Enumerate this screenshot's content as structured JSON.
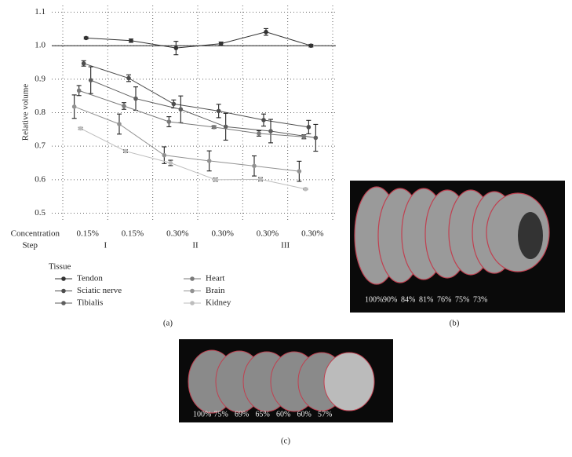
{
  "chart_data": {
    "type": "line",
    "y_label": "Relative volume",
    "x_row_labels": [
      "Concentration",
      "Step"
    ],
    "categories": [
      "0.15%",
      "0.15%",
      "0.30%",
      "0.30%",
      "0.30%",
      "0.30%"
    ],
    "steps": [
      "I",
      "II",
      "III"
    ],
    "ylim": [
      0.48,
      1.12
    ],
    "yticks": [
      0.5,
      0.6,
      0.7,
      0.8,
      0.9,
      {
        "value": 1.0,
        "label": "1.0"
      },
      1.1
    ],
    "reference_line": 1.0,
    "grid": true,
    "legend_title": "Tissue",
    "series": [
      {
        "name": "Tendon",
        "color": "#333333",
        "values": [
          1.023,
          1.015,
          0.993,
          1.006,
          1.041,
          1.0
        ],
        "errors": [
          0.003,
          0.005,
          0.02,
          0.005,
          0.01,
          0.004
        ]
      },
      {
        "name": "Sciatic nerve",
        "color": "#4d4d4d",
        "values": [
          0.947,
          0.903,
          0.826,
          0.805,
          0.778,
          0.757
        ],
        "errors": [
          0.008,
          0.01,
          0.012,
          0.02,
          0.018,
          0.02
        ]
      },
      {
        "name": "Tibialis",
        "color": "#5e5e5e",
        "values": [
          0.897,
          0.842,
          0.81,
          0.758,
          0.745,
          0.725
        ],
        "errors": [
          0.04,
          0.035,
          0.04,
          0.04,
          0.035,
          0.04
        ]
      },
      {
        "name": "Heart",
        "color": "#7a7a7a",
        "values": [
          0.866,
          0.82,
          0.773,
          0.757,
          0.738,
          0.728
        ],
        "errors": [
          0.015,
          0.01,
          0.015,
          0.004,
          0.008,
          0.006
        ]
      },
      {
        "name": "Brain",
        "color": "#929292",
        "values": [
          0.818,
          0.766,
          0.673,
          0.656,
          0.641,
          0.625
        ],
        "errors": [
          0.035,
          0.03,
          0.025,
          0.03,
          0.03,
          0.03
        ]
      },
      {
        "name": "Kidney",
        "color": "#bdbdbd",
        "values": [
          0.753,
          0.685,
          0.65,
          0.6,
          0.601,
          0.572
        ],
        "errors": [
          0.003,
          0.004,
          0.008,
          0.005,
          0.005,
          0.002
        ]
      }
    ]
  },
  "panels": {
    "a": {
      "caption": "(a)"
    },
    "b": {
      "caption": "(b)",
      "labels": [
        "100%",
        "90%",
        "84%",
        "81%",
        "76%",
        "75%",
        "73%"
      ]
    },
    "c": {
      "caption": "(c)",
      "labels": [
        "100%",
        "75%",
        "69%",
        "65%",
        "60%",
        "60%",
        "57%"
      ]
    }
  }
}
